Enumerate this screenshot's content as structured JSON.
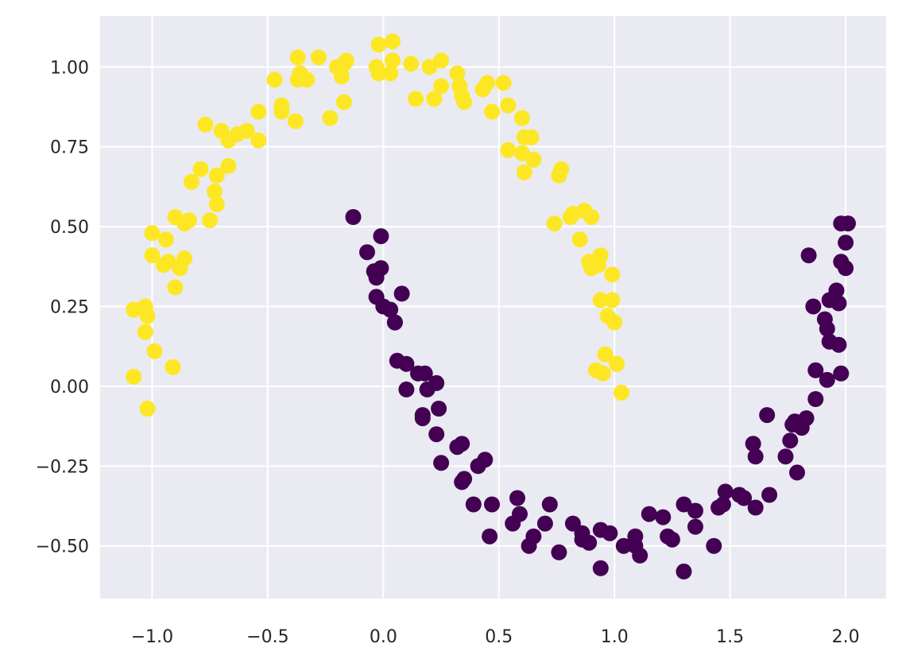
{
  "chart_data": {
    "type": "scatter",
    "title": "",
    "xlabel": "",
    "ylabel": "",
    "xlim": [
      -1.225,
      2.175
    ],
    "ylim": [
      -0.665,
      1.16
    ],
    "grid": true,
    "legend": "none",
    "style": {
      "background": "#eaeaf2",
      "grid_color": "#ffffff",
      "text_color": "#262626"
    },
    "x_ticks": [
      -1.0,
      -0.5,
      0.0,
      0.5,
      1.0,
      1.5,
      2.0
    ],
    "x_tick_labels": [
      "−1.0",
      "−0.5",
      "0.0",
      "0.5",
      "1.0",
      "1.5",
      "2.0"
    ],
    "y_ticks": [
      1.0,
      0.75,
      0.5,
      0.25,
      0.0,
      -0.25,
      -0.5
    ],
    "y_tick_labels": [
      "1.00",
      "0.75",
      "0.50",
      "0.25",
      "0.00",
      "−0.25",
      "−0.50"
    ],
    "series": [
      {
        "color": "#fde725",
        "points": [
          [
            -1.08,
            0.03
          ],
          [
            -1.02,
            -0.07
          ],
          [
            -1.08,
            0.24
          ],
          [
            -1.03,
            0.25
          ],
          [
            -1.02,
            0.22
          ],
          [
            -1.03,
            0.17
          ],
          [
            -0.99,
            0.11
          ],
          [
            -0.91,
            0.06
          ],
          [
            -1.0,
            0.41
          ],
          [
            -1.0,
            0.48
          ],
          [
            -0.95,
            0.38
          ],
          [
            -0.93,
            0.39
          ],
          [
            -0.9,
            0.31
          ],
          [
            -0.88,
            0.37
          ],
          [
            -0.94,
            0.46
          ],
          [
            -0.9,
            0.53
          ],
          [
            -0.86,
            0.51
          ],
          [
            -0.84,
            0.52
          ],
          [
            -0.86,
            0.4
          ],
          [
            -0.83,
            0.64
          ],
          [
            -0.79,
            0.68
          ],
          [
            -0.73,
            0.61
          ],
          [
            -0.72,
            0.57
          ],
          [
            -0.75,
            0.52
          ],
          [
            -0.72,
            0.66
          ],
          [
            -0.67,
            0.69
          ],
          [
            -0.77,
            0.82
          ],
          [
            -0.7,
            0.8
          ],
          [
            -0.67,
            0.77
          ],
          [
            -0.63,
            0.79
          ],
          [
            -0.59,
            0.8
          ],
          [
            -0.54,
            0.77
          ],
          [
            -0.54,
            0.86
          ],
          [
            -0.47,
            0.96
          ],
          [
            -0.44,
            0.88
          ],
          [
            -0.44,
            0.86
          ],
          [
            -0.38,
            0.83
          ],
          [
            -0.37,
            0.96
          ],
          [
            -0.37,
            1.03
          ],
          [
            -0.36,
            0.98
          ],
          [
            -0.33,
            0.96
          ],
          [
            -0.28,
            1.03
          ],
          [
            -0.23,
            0.84
          ],
          [
            -0.2,
            1.0
          ],
          [
            -0.18,
            0.97
          ],
          [
            -0.17,
            1.01
          ],
          [
            -0.16,
            1.02
          ],
          [
            -0.17,
            0.89
          ],
          [
            -0.03,
            1.0
          ],
          [
            -0.02,
            0.98
          ],
          [
            -0.02,
            1.07
          ],
          [
            0.04,
            1.08
          ],
          [
            0.04,
            1.02
          ],
          [
            0.03,
            0.98
          ],
          [
            0.12,
            1.01
          ],
          [
            0.14,
            0.9
          ],
          [
            0.2,
            1.0
          ],
          [
            0.22,
            0.9
          ],
          [
            0.25,
            1.02
          ],
          [
            0.25,
            0.94
          ],
          [
            0.32,
            0.98
          ],
          [
            0.33,
            0.94
          ],
          [
            0.34,
            0.91
          ],
          [
            0.35,
            0.89
          ],
          [
            0.43,
            0.93
          ],
          [
            0.45,
            0.95
          ],
          [
            0.47,
            0.86
          ],
          [
            0.52,
            0.95
          ],
          [
            0.54,
            0.88
          ],
          [
            0.54,
            0.74
          ],
          [
            0.6,
            0.73
          ],
          [
            0.6,
            0.84
          ],
          [
            0.61,
            0.78
          ],
          [
            0.61,
            0.67
          ],
          [
            0.64,
            0.78
          ],
          [
            0.65,
            0.71
          ],
          [
            0.74,
            0.51
          ],
          [
            0.76,
            0.66
          ],
          [
            0.77,
            0.68
          ],
          [
            0.81,
            0.53
          ],
          [
            0.85,
            0.46
          ],
          [
            0.82,
            0.54
          ],
          [
            0.87,
            0.55
          ],
          [
            0.9,
            0.53
          ],
          [
            0.89,
            0.39
          ],
          [
            0.9,
            0.37
          ],
          [
            0.92,
            0.39
          ],
          [
            0.93,
            0.38
          ],
          [
            0.94,
            0.41
          ],
          [
            0.99,
            0.35
          ],
          [
            0.94,
            0.27
          ],
          [
            0.99,
            0.27
          ],
          [
            0.97,
            0.22
          ],
          [
            1.0,
            0.2
          ],
          [
            0.96,
            0.1
          ],
          [
            0.92,
            0.05
          ],
          [
            0.95,
            0.04
          ],
          [
            1.01,
            0.07
          ],
          [
            1.03,
            -0.02
          ]
        ]
      },
      {
        "color": "#440154",
        "points": [
          [
            -0.13,
            0.53
          ],
          [
            -0.07,
            0.42
          ],
          [
            -0.04,
            0.36
          ],
          [
            -0.03,
            0.34
          ],
          [
            -0.03,
            0.28
          ],
          [
            -0.01,
            0.47
          ],
          [
            -0.01,
            0.37
          ],
          [
            0.0,
            0.25
          ],
          [
            0.03,
            0.24
          ],
          [
            0.05,
            0.2
          ],
          [
            0.05,
            0.2
          ],
          [
            0.08,
            0.29
          ],
          [
            0.06,
            0.08
          ],
          [
            0.1,
            0.07
          ],
          [
            0.1,
            -0.01
          ],
          [
            0.15,
            0.04
          ],
          [
            0.18,
            0.04
          ],
          [
            0.19,
            -0.01
          ],
          [
            0.23,
            0.01
          ],
          [
            0.17,
            -0.09
          ],
          [
            0.17,
            -0.1
          ],
          [
            0.24,
            -0.07
          ],
          [
            0.23,
            -0.15
          ],
          [
            0.25,
            -0.24
          ],
          [
            0.32,
            -0.19
          ],
          [
            0.34,
            -0.18
          ],
          [
            0.34,
            -0.3
          ],
          [
            0.35,
            -0.29
          ],
          [
            0.41,
            -0.25
          ],
          [
            0.44,
            -0.23
          ],
          [
            0.39,
            -0.37
          ],
          [
            0.47,
            -0.37
          ],
          [
            0.46,
            -0.47
          ],
          [
            0.58,
            -0.35
          ],
          [
            0.56,
            -0.43
          ],
          [
            0.59,
            -0.4
          ],
          [
            0.63,
            -0.5
          ],
          [
            0.65,
            -0.47
          ],
          [
            0.7,
            -0.43
          ],
          [
            0.72,
            -0.37
          ],
          [
            0.76,
            -0.52
          ],
          [
            0.82,
            -0.43
          ],
          [
            0.86,
            -0.46
          ],
          [
            0.86,
            -0.48
          ],
          [
            0.89,
            -0.49
          ],
          [
            0.94,
            -0.45
          ],
          [
            0.94,
            -0.57
          ],
          [
            0.98,
            -0.46
          ],
          [
            1.04,
            -0.5
          ],
          [
            1.09,
            -0.47
          ],
          [
            1.09,
            -0.5
          ],
          [
            1.11,
            -0.53
          ],
          [
            1.15,
            -0.4
          ],
          [
            1.21,
            -0.41
          ],
          [
            1.23,
            -0.47
          ],
          [
            1.25,
            -0.48
          ],
          [
            1.3,
            -0.37
          ],
          [
            1.3,
            -0.58
          ],
          [
            1.35,
            -0.39
          ],
          [
            1.35,
            -0.44
          ],
          [
            1.43,
            -0.5
          ],
          [
            1.45,
            -0.38
          ],
          [
            1.47,
            -0.37
          ],
          [
            1.48,
            -0.33
          ],
          [
            1.54,
            -0.34
          ],
          [
            1.56,
            -0.35
          ],
          [
            1.6,
            -0.18
          ],
          [
            1.61,
            -0.22
          ],
          [
            1.61,
            -0.38
          ],
          [
            1.67,
            -0.34
          ],
          [
            1.66,
            -0.09
          ],
          [
            1.74,
            -0.22
          ],
          [
            1.76,
            -0.17
          ],
          [
            1.77,
            -0.12
          ],
          [
            1.78,
            -0.11
          ],
          [
            1.79,
            -0.27
          ],
          [
            1.81,
            -0.13
          ],
          [
            1.83,
            -0.1
          ],
          [
            1.87,
            -0.04
          ],
          [
            1.87,
            0.05
          ],
          [
            1.92,
            0.02
          ],
          [
            1.91,
            0.21
          ],
          [
            1.92,
            0.18
          ],
          [
            1.93,
            0.14
          ],
          [
            1.86,
            0.25
          ],
          [
            1.93,
            0.27
          ],
          [
            1.96,
            0.3
          ],
          [
            1.97,
            0.13
          ],
          [
            1.97,
            0.26
          ],
          [
            1.98,
            0.04
          ],
          [
            1.98,
            0.51
          ],
          [
            2.0,
            0.45
          ],
          [
            2.01,
            0.51
          ],
          [
            1.98,
            0.39
          ],
          [
            2.0,
            0.37
          ],
          [
            1.84,
            0.41
          ]
        ]
      }
    ]
  }
}
